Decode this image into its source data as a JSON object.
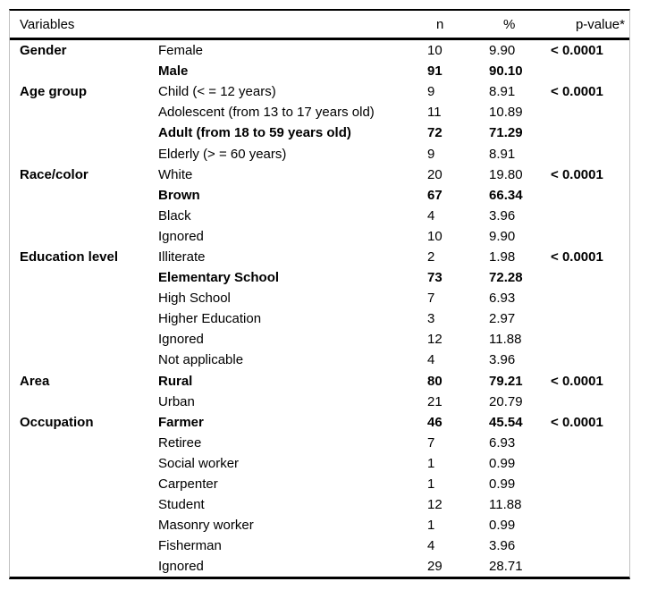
{
  "header": {
    "variables": "Variables",
    "n": "n",
    "percent": "%",
    "p_value": "p-value*"
  },
  "colors": {
    "rule": "#000000",
    "frame_border": "#c0c0c0",
    "text": "#000000",
    "background": "#ffffff"
  },
  "rows": [
    {
      "group": "Gender",
      "category": "Female",
      "n": "10",
      "pct": "9.90",
      "p": "< 0.0001",
      "bold": false
    },
    {
      "group": "",
      "category": "Male",
      "n": "91",
      "pct": "90.10",
      "p": "",
      "bold": true
    },
    {
      "group": "Age group",
      "category": "Child (< = 12 years)",
      "n": "9",
      "pct": "8.91",
      "p": "< 0.0001",
      "bold": false
    },
    {
      "group": "",
      "category": "Adolescent (from 13 to 17 years old)",
      "n": "11",
      "pct": "10.89",
      "p": "",
      "bold": false
    },
    {
      "group": "",
      "category": "Adult (from 18 to 59 years old)",
      "n": "72",
      "pct": "71.29",
      "p": "",
      "bold": true
    },
    {
      "group": "",
      "category": "Elderly (> = 60 years)",
      "n": "9",
      "pct": "8.91",
      "p": "",
      "bold": false
    },
    {
      "group": "Race/color",
      "category": "White",
      "n": "20",
      "pct": "19.80",
      "p": "< 0.0001",
      "bold": false
    },
    {
      "group": "",
      "category": "Brown",
      "n": "67",
      "pct": "66.34",
      "p": "",
      "bold": true
    },
    {
      "group": "",
      "category": "Black",
      "n": "4",
      "pct": "3.96",
      "p": "",
      "bold": false
    },
    {
      "group": "",
      "category": "Ignored",
      "n": "10",
      "pct": "9.90",
      "p": "",
      "bold": false
    },
    {
      "group": "Education level",
      "category": "Illiterate",
      "n": "2",
      "pct": "1.98",
      "p": "< 0.0001",
      "bold": false
    },
    {
      "group": "",
      "category": "Elementary School",
      "n": "73",
      "pct": "72.28",
      "p": "",
      "bold": true
    },
    {
      "group": "",
      "category": "High School",
      "n": "7",
      "pct": "6.93",
      "p": "",
      "bold": false
    },
    {
      "group": "",
      "category": "Higher Education",
      "n": "3",
      "pct": "2.97",
      "p": "",
      "bold": false
    },
    {
      "group": "",
      "category": "Ignored",
      "n": "12",
      "pct": "11.88",
      "p": "",
      "bold": false
    },
    {
      "group": "",
      "category": "Not applicable",
      "n": "4",
      "pct": "3.96",
      "p": "",
      "bold": false
    },
    {
      "group": "Area",
      "category": "Rural",
      "n": "80",
      "pct": "79.21",
      "p": "< 0.0001",
      "bold": true
    },
    {
      "group": "",
      "category": "Urban",
      "n": "21",
      "pct": "20.79",
      "p": "",
      "bold": false
    },
    {
      "group": "Occupation",
      "category": "Farmer",
      "n": "46",
      "pct": "45.54",
      "p": "< 0.0001",
      "bold": true
    },
    {
      "group": "",
      "category": "Retiree",
      "n": "7",
      "pct": "6.93",
      "p": "",
      "bold": false
    },
    {
      "group": "",
      "category": "Social worker",
      "n": "1",
      "pct": "0.99",
      "p": "",
      "bold": false
    },
    {
      "group": "",
      "category": "Carpenter",
      "n": "1",
      "pct": "0.99",
      "p": "",
      "bold": false
    },
    {
      "group": "",
      "category": "Student",
      "n": "12",
      "pct": "11.88",
      "p": "",
      "bold": false
    },
    {
      "group": "",
      "category": "Masonry worker",
      "n": "1",
      "pct": "0.99",
      "p": "",
      "bold": false
    },
    {
      "group": "",
      "category": "Fisherman",
      "n": "4",
      "pct": "3.96",
      "p": "",
      "bold": false
    },
    {
      "group": "",
      "category": "Ignored",
      "n": "29",
      "pct": "28.71",
      "p": "",
      "bold": false
    }
  ]
}
